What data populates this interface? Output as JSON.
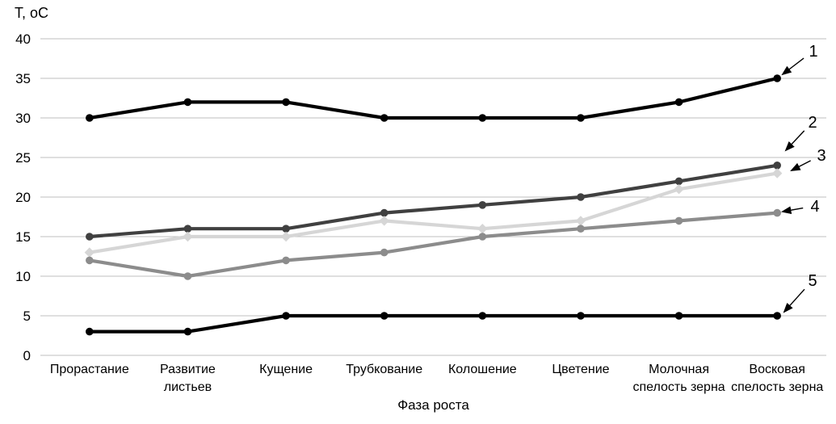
{
  "chart_data": {
    "type": "line",
    "title": "",
    "ylabel": "Т, оС",
    "xlabel": "Фаза роста",
    "ylim": [
      0,
      40
    ],
    "ytick_step": 5,
    "yticks": [
      0,
      5,
      10,
      15,
      20,
      25,
      30,
      35,
      40
    ],
    "grid": true,
    "legend_position": "arrow-annotations-right",
    "categories": [
      "Прорастание",
      "Развитие листьев",
      "Кущение",
      "Трубкование",
      "Колошение",
      "Цветение",
      "Молочная спелость зерна",
      "Восковая спелость зерна"
    ],
    "series": [
      {
        "name": "1",
        "values": [
          30,
          32,
          32,
          30,
          30,
          30,
          32,
          35
        ],
        "color": "#000000",
        "marker": "circle"
      },
      {
        "name": "2",
        "values": [
          15,
          16,
          16,
          18,
          19,
          20,
          22,
          24
        ],
        "color": "#404040",
        "marker": "circle"
      },
      {
        "name": "3",
        "values": [
          13,
          15,
          15,
          17,
          16,
          17,
          21,
          23
        ],
        "color": "#d6d6d6",
        "marker": "diamond"
      },
      {
        "name": "4",
        "values": [
          12,
          10,
          12,
          13,
          15,
          16,
          17,
          18
        ],
        "color": "#8c8c8c",
        "marker": "circle"
      },
      {
        "name": "5",
        "values": [
          3,
          3,
          5,
          5,
          5,
          5,
          5,
          5
        ],
        "color": "#000000",
        "marker": "circle"
      }
    ]
  },
  "colors": {
    "gridline": "#bfbfbf",
    "text": "#000000",
    "background": "#ffffff",
    "arrow": "#000000"
  }
}
